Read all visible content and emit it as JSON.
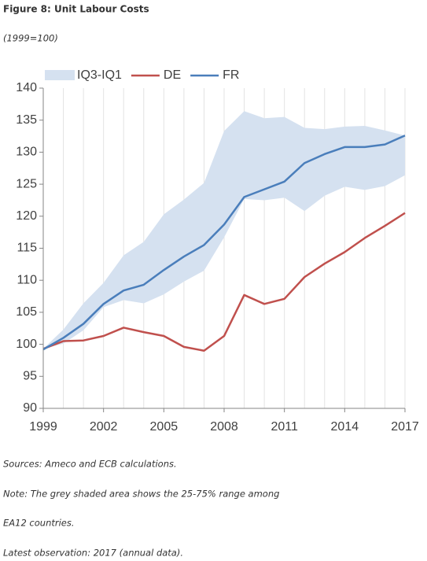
{
  "chart_data": {
    "type": "line",
    "title": "Figure 8: Unit Labour Costs",
    "subtitle": "(1999=100)",
    "x": [
      1999,
      2000,
      2001,
      2002,
      2003,
      2004,
      2005,
      2006,
      2007,
      2008,
      2009,
      2010,
      2011,
      2012,
      2013,
      2014,
      2015,
      2016,
      2017
    ],
    "series": [
      {
        "name": "IQ3-IQ1",
        "color": "#d5e1f0",
        "type": "band",
        "upper": [
          99.3,
          102.3,
          106.4,
          109.6,
          113.9,
          116.0,
          120.3,
          122.6,
          125.2,
          133.3,
          136.4,
          135.3,
          135.5,
          133.8,
          133.6,
          134.0,
          134.1,
          133.4,
          132.6
        ],
        "lower": [
          99.3,
          100.1,
          102.2,
          105.8,
          106.9,
          106.4,
          107.8,
          109.8,
          111.5,
          116.7,
          122.7,
          122.5,
          122.9,
          120.8,
          123.2,
          124.6,
          124.1,
          124.7,
          126.4
        ]
      },
      {
        "name": "DE",
        "color": "#c0504d",
        "values": [
          99.3,
          100.5,
          100.6,
          101.3,
          102.6,
          101.9,
          101.3,
          99.6,
          99.0,
          101.3,
          107.7,
          106.3,
          107.1,
          110.5,
          112.6,
          114.4,
          116.6,
          118.5,
          120.5
        ]
      },
      {
        "name": "FR",
        "color": "#4a7ebb",
        "values": [
          99.2,
          101.0,
          103.2,
          106.3,
          108.4,
          109.3,
          111.6,
          113.7,
          115.5,
          118.7,
          123.0,
          124.2,
          125.4,
          128.3,
          129.7,
          130.8,
          130.8,
          131.2,
          132.6
        ]
      }
    ],
    "xlim": [
      1999,
      2017
    ],
    "xticks": [
      1999,
      2002,
      2005,
      2008,
      2011,
      2014,
      2017
    ],
    "ylim": [
      90,
      140
    ],
    "yticks": [
      90,
      95,
      100,
      105,
      110,
      115,
      120,
      125,
      130,
      135,
      140
    ],
    "grid": "x",
    "legend": "top",
    "notes": [
      "Sources: Ameco and ECB calculations.",
      "Note: The grey shaded area shows the 25-75% range among",
      "EA12 countries.",
      "Latest observation: 2017 (annual data)."
    ]
  }
}
